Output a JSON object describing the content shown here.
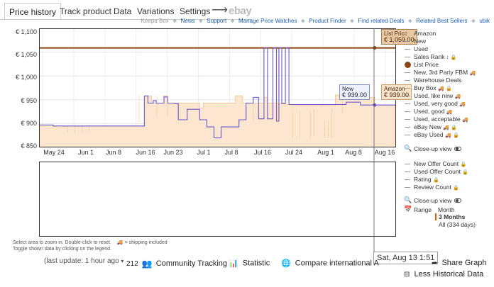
{
  "tabs": [
    "Price history",
    "Track product",
    "Data",
    "Variations",
    "Settings"
  ],
  "arrow": "⟶",
  "ebay": "ebay",
  "links": {
    "brand": "Keepa Box",
    "items": [
      "News",
      "Support",
      "Manage Price Watches",
      "Product Finder",
      "Find related Deals",
      "Related Best Sellers",
      "ubik"
    ]
  },
  "chart_data": {
    "type": "line",
    "y_tick_labels": [
      "€ 1,100",
      "€ 1,050",
      "€ 1,000",
      "€ 950",
      "€ 900",
      "€ 850"
    ],
    "ylim": [
      850,
      1100
    ],
    "x_tick_labels": [
      "May 24",
      "Jun 1",
      "Jun 8",
      "Jun 16",
      "Jun 23",
      "Jul 1",
      "Jul 8",
      "Jul 16",
      "Jul 24",
      "Aug 1",
      "Aug 8",
      "Aug 16"
    ],
    "series": [
      {
        "name": "List Price",
        "color": "#8b4513",
        "values": [
          [
            0,
            1059
          ],
          [
            100,
            1059
          ]
        ]
      },
      {
        "name": "Amazon",
        "color": "#f5c89c",
        "values": [
          [
            0,
            897
          ],
          [
            4,
            897
          ],
          [
            4,
            895
          ],
          [
            29.5,
            895
          ],
          [
            29.5,
            958
          ],
          [
            31.5,
            958
          ],
          [
            31.5,
            943
          ],
          [
            35,
            943
          ],
          [
            35,
            958
          ],
          [
            36,
            958
          ],
          [
            36,
            943
          ],
          [
            45,
            943
          ],
          [
            45,
            933
          ],
          [
            46,
            933
          ],
          [
            46,
            943
          ],
          [
            55,
            943
          ],
          [
            55,
            958
          ],
          [
            57,
            958
          ],
          [
            57,
            943
          ],
          [
            63,
            943
          ],
          [
            63,
            955
          ],
          [
            64,
            955
          ],
          [
            64,
            943
          ],
          [
            69,
            943
          ],
          [
            69,
            940
          ],
          [
            71,
            940
          ],
          [
            71,
            938
          ],
          [
            83,
            938
          ],
          [
            83,
            960
          ],
          [
            87,
            960
          ],
          [
            87,
            955
          ],
          [
            94,
            955
          ],
          [
            94,
            939
          ],
          [
            100,
            939
          ]
        ]
      },
      {
        "name": "New",
        "color": "#6a5acd",
        "values": [
          [
            0,
            897
          ],
          [
            4,
            897
          ],
          [
            4,
            895
          ],
          [
            29.5,
            895
          ],
          [
            29.5,
            958
          ],
          [
            30.5,
            958
          ],
          [
            30.5,
            943
          ],
          [
            32,
            943
          ],
          [
            32,
            948
          ],
          [
            32.8,
            948
          ],
          [
            32.8,
            943
          ],
          [
            35,
            943
          ],
          [
            35,
            956
          ],
          [
            36,
            956
          ],
          [
            36,
            943
          ],
          [
            38,
            943
          ],
          [
            38,
            942
          ],
          [
            39,
            942
          ],
          [
            39,
            908
          ],
          [
            41.5,
            908
          ],
          [
            41.5,
            930
          ],
          [
            45,
            930
          ],
          [
            45,
            908
          ],
          [
            47,
            908
          ],
          [
            47,
            893
          ],
          [
            49,
            893
          ],
          [
            49,
            870
          ],
          [
            51,
            870
          ],
          [
            51,
            893
          ],
          [
            56,
            893
          ],
          [
            56,
            908
          ],
          [
            58,
            908
          ],
          [
            58,
            943
          ],
          [
            60,
            943
          ],
          [
            60,
            955
          ],
          [
            61.5,
            955
          ],
          [
            61.5,
            910
          ],
          [
            63,
            910
          ],
          [
            63,
            1059
          ],
          [
            64,
            1059
          ],
          [
            64,
            910
          ],
          [
            65.5,
            910
          ],
          [
            65.5,
            1059
          ],
          [
            66.5,
            1059
          ],
          [
            66.5,
            905
          ],
          [
            67.2,
            905
          ],
          [
            67.2,
            1059
          ],
          [
            68,
            1059
          ],
          [
            68,
            942
          ],
          [
            69,
            942
          ],
          [
            69,
            1059
          ],
          [
            70,
            1059
          ],
          [
            70,
            940
          ],
          [
            86,
            940
          ],
          [
            86,
            945
          ],
          [
            90,
            945
          ],
          [
            90,
            939
          ],
          [
            100,
            939
          ]
        ]
      }
    ]
  },
  "tooltips": {
    "list_price": {
      "label": "List Price",
      "value": "€ 1,059.00"
    },
    "new": {
      "label": "New",
      "value": "€ 939.00"
    },
    "amazon": {
      "label": "Amazon",
      "value": "€ 939.00"
    },
    "date": "Sat, Aug 13 1:51"
  },
  "legend": {
    "price_items": [
      "Amazon",
      "New",
      "Used",
      "Sales Rank",
      "List Price",
      "New, 3rd Party FBM",
      "Warehouse Deals",
      "Buy Box",
      "Used, like new",
      "Used, very good",
      "Used, good",
      "Used, acceptable",
      "eBay New",
      "eBay Used"
    ],
    "closeup": "Close-up view",
    "count_items": [
      "New Offer Count",
      "Used Offer Count",
      "Rating",
      "Review Count"
    ],
    "closeup2": "Close-up view",
    "range_label": "Range",
    "range_options": [
      "Month",
      "3 Months",
      "All (334 days)"
    ]
  },
  "notes": {
    "line1": "Select area to zoom in. Double-click to reset.",
    "shipping_icon": "🚚",
    "line1b": "= shipping included",
    "line2": "Toggle shown data by clicking on the legend."
  },
  "footer": {
    "last_update": "(last update: 1 hour ago",
    "count": "212",
    "community": "Community Tracking",
    "statistic": "Statistic",
    "compare": "Compare international A",
    "share": "Share Graph",
    "less": "Less Historical Data"
  }
}
